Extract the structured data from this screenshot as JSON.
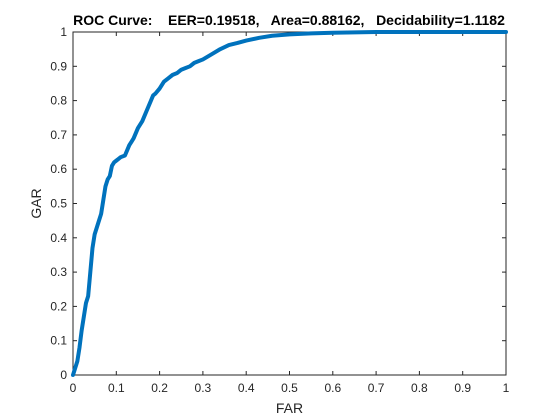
{
  "chart_data": {
    "type": "line",
    "title": "ROC Curve:    EER=0.19518,   Area=0.88162,   Decidability=1.1182",
    "xlabel": "FAR",
    "ylabel": "GAR",
    "xlim": [
      0,
      1
    ],
    "ylim": [
      0,
      1
    ],
    "xticks": [
      0,
      0.1,
      0.2,
      0.3,
      0.4,
      0.5,
      0.6,
      0.7,
      0.8,
      0.9,
      1
    ],
    "yticks": [
      0,
      0.1,
      0.2,
      0.3,
      0.4,
      0.5,
      0.6,
      0.7,
      0.8,
      0.9,
      1
    ],
    "xtick_labels": [
      "0",
      "0.1",
      "0.2",
      "0.3",
      "0.4",
      "0.5",
      "0.6",
      "0.7",
      "0.8",
      "0.9",
      "1"
    ],
    "ytick_labels": [
      "0",
      "0.1",
      "0.2",
      "0.3",
      "0.4",
      "0.5",
      "0.6",
      "0.7",
      "0.8",
      "0.9",
      "1"
    ],
    "grid": false,
    "line_color": "#0072BD",
    "series": [
      {
        "x": [
          0,
          0.005,
          0.01,
          0.015,
          0.02,
          0.025,
          0.03,
          0.035,
          0.04,
          0.045,
          0.05,
          0.055,
          0.06,
          0.065,
          0.07,
          0.075,
          0.08,
          0.085,
          0.09,
          0.095,
          0.1,
          0.105,
          0.11,
          0.12,
          0.13,
          0.135,
          0.14,
          0.15,
          0.16,
          0.17,
          0.18,
          0.185,
          0.19,
          0.2,
          0.21,
          0.22,
          0.23,
          0.24,
          0.25,
          0.26,
          0.27,
          0.28,
          0.29,
          0.3,
          0.32,
          0.34,
          0.36,
          0.38,
          0.4,
          0.43,
          0.46,
          0.5,
          0.55,
          0.6,
          0.65,
          0.7,
          0.8,
          0.9,
          1.0
        ],
        "y": [
          0,
          0.02,
          0.04,
          0.08,
          0.13,
          0.17,
          0.21,
          0.23,
          0.3,
          0.37,
          0.41,
          0.43,
          0.45,
          0.47,
          0.51,
          0.55,
          0.57,
          0.58,
          0.61,
          0.62,
          0.625,
          0.63,
          0.635,
          0.64,
          0.67,
          0.68,
          0.69,
          0.72,
          0.74,
          0.77,
          0.8,
          0.815,
          0.82,
          0.835,
          0.855,
          0.865,
          0.875,
          0.88,
          0.89,
          0.895,
          0.9,
          0.91,
          0.915,
          0.92,
          0.935,
          0.95,
          0.962,
          0.968,
          0.975,
          0.983,
          0.989,
          0.993,
          0.996,
          0.998,
          0.999,
          1.0,
          1.0,
          1.0,
          1.0
        ]
      }
    ]
  }
}
